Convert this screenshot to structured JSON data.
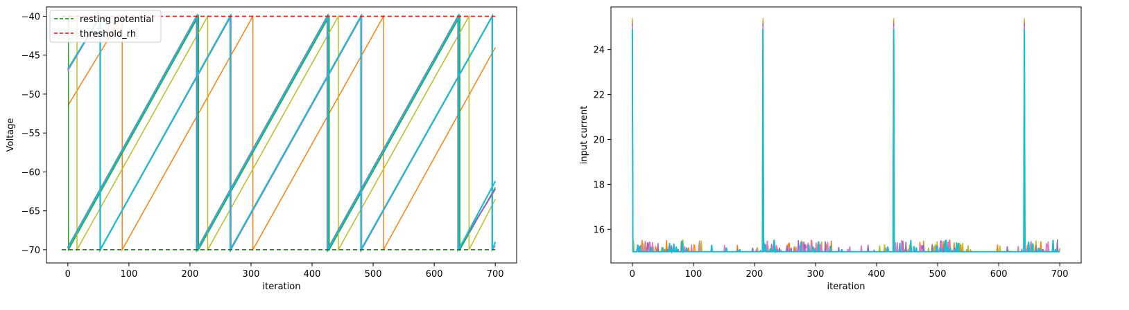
{
  "chart_data": [
    {
      "type": "line",
      "xlabel": "iteration",
      "ylabel": "Voltage",
      "xlim": [
        -35,
        735
      ],
      "ylim": [
        -71.7,
        -38.8
      ],
      "xticks": [
        0,
        100,
        200,
        300,
        400,
        500,
        600,
        700
      ],
      "yticks": [
        -70,
        -65,
        -60,
        -55,
        -50,
        -45,
        -40
      ],
      "ytick_labels": [
        "−70",
        "−65",
        "−60",
        "−55",
        "−50",
        "−45",
        "−40"
      ],
      "grid": false,
      "legend_position": "top-left",
      "reference_lines": [
        {
          "name": "resting potential",
          "y": -70,
          "x_range": [
            -10,
            700
          ],
          "color": "#008000",
          "style": "dashed"
        },
        {
          "name": "threshold_rh",
          "y": -40,
          "x_range": [
            -10,
            700
          ],
          "color": "#ff0000",
          "style": "dashed"
        }
      ],
      "neuron_traces": [
        {
          "color": "#ff7f0e",
          "start_v": -51.5,
          "spikes": [
            89,
            303,
            517
          ],
          "end_v": -44.0
        },
        {
          "color": "#2ca02c",
          "start_v": -40.2,
          "spikes": [
            1,
            214,
            428,
            642
          ],
          "end_v": -62.0
        },
        {
          "color": "#bcbd22",
          "start_v": -40.2,
          "spikes": [
            15,
            229,
            443,
            657
          ],
          "end_v": -63.5
        },
        {
          "color": "#e377c2",
          "start_v": -47.0,
          "spikes": [
            53,
            267,
            481,
            695
          ],
          "end_v": -69.5
        },
        {
          "color": "#17becf",
          "start_v": -46.8,
          "spikes": [
            53,
            266,
            480,
            695
          ],
          "end_v": -69.0
        },
        {
          "color": "#9467bd",
          "start_v": -69.7,
          "spikes": [
            211,
            425,
            639
          ],
          "end_v": -62.2
        },
        {
          "color": "#17becf",
          "start_v": -69.8,
          "spikes": [
            212,
            426,
            640
          ],
          "end_v": -61.2
        }
      ]
    },
    {
      "type": "line",
      "xlabel": "iteration",
      "ylabel": "input current",
      "xlim": [
        -35,
        735
      ],
      "ylim": [
        14.5,
        25.9
      ],
      "xticks": [
        0,
        100,
        200,
        300,
        400,
        500,
        600,
        700
      ],
      "yticks": [
        16,
        18,
        20,
        22,
        24
      ],
      "grid": false,
      "baseline": 15.0,
      "spike_peaks": [
        {
          "x": 0,
          "y": 25.4
        },
        {
          "x": 214,
          "y": 25.4
        },
        {
          "x": 428,
          "y": 25.4
        },
        {
          "x": 642,
          "y": 25.4
        }
      ],
      "series_colors": [
        "#bcbd22",
        "#ff7f0e",
        "#9467bd",
        "#e377c2",
        "#17becf"
      ],
      "noise_blip_amplitude_max": 0.55
    }
  ]
}
